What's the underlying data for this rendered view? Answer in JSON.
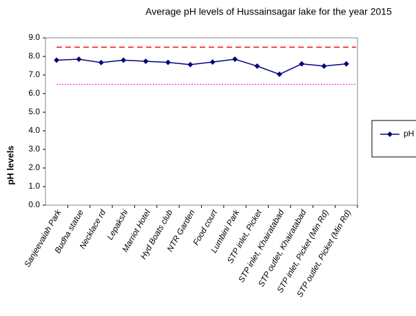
{
  "chart_data": {
    "type": "line",
    "title": "Average pH levels of Hussainsagar lake for the year 2015",
    "y_label": "pH levels",
    "categories": [
      "Sanjeevaiah Park",
      "Budha statue",
      "Necklace rd",
      "Lepakshi",
      "Marriot Hotel",
      "Hyd Boats club",
      "NTR Garden",
      "Food court",
      "Lumbini Park",
      "STP inlet, Picket",
      "STP inlet, Khairatabad",
      "STP outlet, Khairatabad",
      "STP inlet, Picket (Min Rd)",
      "STP outlet, Picket (Min Rd)"
    ],
    "series": [
      {
        "name": "pH",
        "color": "#000080",
        "values": [
          7.8,
          7.85,
          7.67,
          7.8,
          7.74,
          7.68,
          7.56,
          7.7,
          7.85,
          7.48,
          7.04,
          7.6,
          7.48,
          7.6
        ]
      }
    ],
    "reference_lines": [
      {
        "value": 8.5,
        "color": "#ff0000"
      },
      {
        "value": 6.5,
        "color": "#ff00ff"
      }
    ],
    "ylim": [
      0,
      9
    ],
    "yticks": [
      {
        "value": 0,
        "label": "0.0"
      },
      {
        "value": 1,
        "label": "1.0"
      },
      {
        "value": 2,
        "label": "2.0"
      },
      {
        "value": 3,
        "label": "3.0"
      },
      {
        "value": 4,
        "label": "4.0"
      },
      {
        "value": 5,
        "label": "5.0"
      },
      {
        "value": 6,
        "label": "6.0"
      },
      {
        "value": 7,
        "label": "7.0"
      },
      {
        "value": 8,
        "label": "8.0"
      },
      {
        "value": 9,
        "label": "9.0"
      }
    ],
    "legend": "right"
  }
}
